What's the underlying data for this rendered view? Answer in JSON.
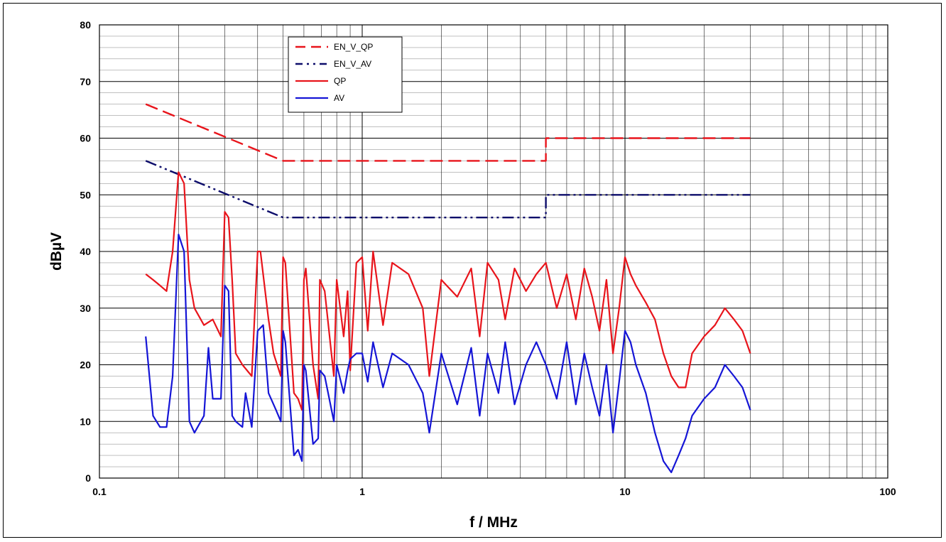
{
  "chart_data": {
    "type": "line",
    "xlabel": "f / MHz",
    "ylabel": "dBµV",
    "xscale": "log",
    "xlim": [
      0.1,
      100
    ],
    "ylim": [
      0,
      80
    ],
    "x_ticks": [
      "0.1",
      "1",
      "10",
      "100"
    ],
    "y_ticks": [
      "0",
      "10",
      "20",
      "30",
      "40",
      "50",
      "60",
      "70",
      "80"
    ],
    "grid": true,
    "legend_position": "top-left",
    "series": [
      {
        "name": "EN_V_QP",
        "color": "#e8141b",
        "style": "dashed",
        "x": [
          0.15,
          0.5,
          0.5,
          5,
          5,
          30
        ],
        "y": [
          66,
          56,
          56,
          56,
          60,
          60
        ]
      },
      {
        "name": "EN_V_AV",
        "color": "#0d0d6b",
        "style": "dash-dot-dot",
        "x": [
          0.15,
          0.5,
          0.5,
          5,
          5,
          30
        ],
        "y": [
          56,
          46,
          46,
          46,
          50,
          50
        ]
      },
      {
        "name": "QP",
        "color": "#e8141b",
        "style": "solid",
        "x": [
          0.15,
          0.16,
          0.17,
          0.18,
          0.19,
          0.2,
          0.21,
          0.22,
          0.23,
          0.25,
          0.27,
          0.29,
          0.3,
          0.31,
          0.32,
          0.33,
          0.35,
          0.38,
          0.4,
          0.41,
          0.44,
          0.46,
          0.49,
          0.5,
          0.51,
          0.55,
          0.57,
          0.59,
          0.6,
          0.61,
          0.65,
          0.68,
          0.69,
          0.72,
          0.78,
          0.8,
          0.85,
          0.88,
          0.9,
          0.95,
          1.0,
          1.05,
          1.1,
          1.2,
          1.3,
          1.5,
          1.7,
          1.8,
          2.0,
          2.3,
          2.6,
          2.8,
          3.0,
          3.3,
          3.5,
          3.8,
          4.2,
          4.6,
          5.0,
          5.5,
          6.0,
          6.5,
          7.0,
          7.5,
          8.0,
          8.5,
          9.0,
          9.5,
          10.0,
          10.5,
          11.0,
          12.0,
          13.0,
          14.0,
          15.0,
          16.0,
          17.0,
          18.0,
          20.0,
          22.0,
          24.0,
          26.0,
          28.0,
          30.0
        ],
        "y": [
          36,
          35,
          34,
          33,
          40,
          54,
          52,
          35,
          30,
          27,
          28,
          25,
          47,
          46,
          35,
          22,
          20,
          18,
          40,
          40,
          28,
          22,
          18,
          39,
          38,
          15,
          14,
          12,
          35,
          37,
          20,
          14,
          35,
          33,
          18,
          35,
          25,
          33,
          19,
          38,
          39,
          26,
          40,
          27,
          38,
          36,
          30,
          18,
          35,
          32,
          37,
          25,
          38,
          35,
          28,
          37,
          33,
          36,
          38,
          30,
          36,
          28,
          37,
          32,
          26,
          35,
          22,
          30,
          39,
          36,
          34,
          31,
          28,
          22,
          18,
          16,
          16,
          22,
          25,
          27,
          30,
          28,
          26,
          22
        ]
      },
      {
        "name": "AV",
        "color": "#1515d6",
        "style": "solid",
        "x": [
          0.15,
          0.16,
          0.17,
          0.18,
          0.19,
          0.2,
          0.21,
          0.22,
          0.23,
          0.25,
          0.26,
          0.27,
          0.29,
          0.3,
          0.31,
          0.32,
          0.33,
          0.35,
          0.36,
          0.38,
          0.4,
          0.42,
          0.44,
          0.47,
          0.49,
          0.5,
          0.51,
          0.55,
          0.57,
          0.59,
          0.6,
          0.61,
          0.65,
          0.68,
          0.69,
          0.72,
          0.78,
          0.8,
          0.85,
          0.88,
          0.9,
          0.95,
          1.0,
          1.05,
          1.1,
          1.2,
          1.3,
          1.5,
          1.7,
          1.8,
          2.0,
          2.3,
          2.6,
          2.8,
          3.0,
          3.3,
          3.5,
          3.8,
          4.2,
          4.6,
          5.0,
          5.5,
          6.0,
          6.5,
          7.0,
          7.5,
          8.0,
          8.5,
          9.0,
          9.5,
          10.0,
          10.5,
          11.0,
          12.0,
          13.0,
          14.0,
          15.0,
          16.0,
          17.0,
          18.0,
          20.0,
          22.0,
          24.0,
          26.0,
          28.0,
          30.0
        ],
        "y": [
          25,
          11,
          9,
          9,
          18,
          43,
          40,
          10,
          8,
          11,
          23,
          14,
          14,
          34,
          33,
          11,
          10,
          9,
          15,
          9,
          26,
          27,
          15,
          12,
          10,
          26,
          24,
          4,
          5,
          3,
          20,
          19,
          6,
          7,
          19,
          18,
          10,
          20,
          15,
          19,
          21,
          22,
          22,
          17,
          24,
          16,
          22,
          20,
          15,
          8,
          22,
          13,
          23,
          11,
          22,
          15,
          24,
          13,
          20,
          24,
          20,
          14,
          24,
          13,
          22,
          16,
          11,
          20,
          8,
          17,
          26,
          24,
          20,
          15,
          8,
          3,
          1,
          4,
          7,
          11,
          14,
          16,
          20,
          18,
          16,
          12
        ]
      }
    ]
  }
}
